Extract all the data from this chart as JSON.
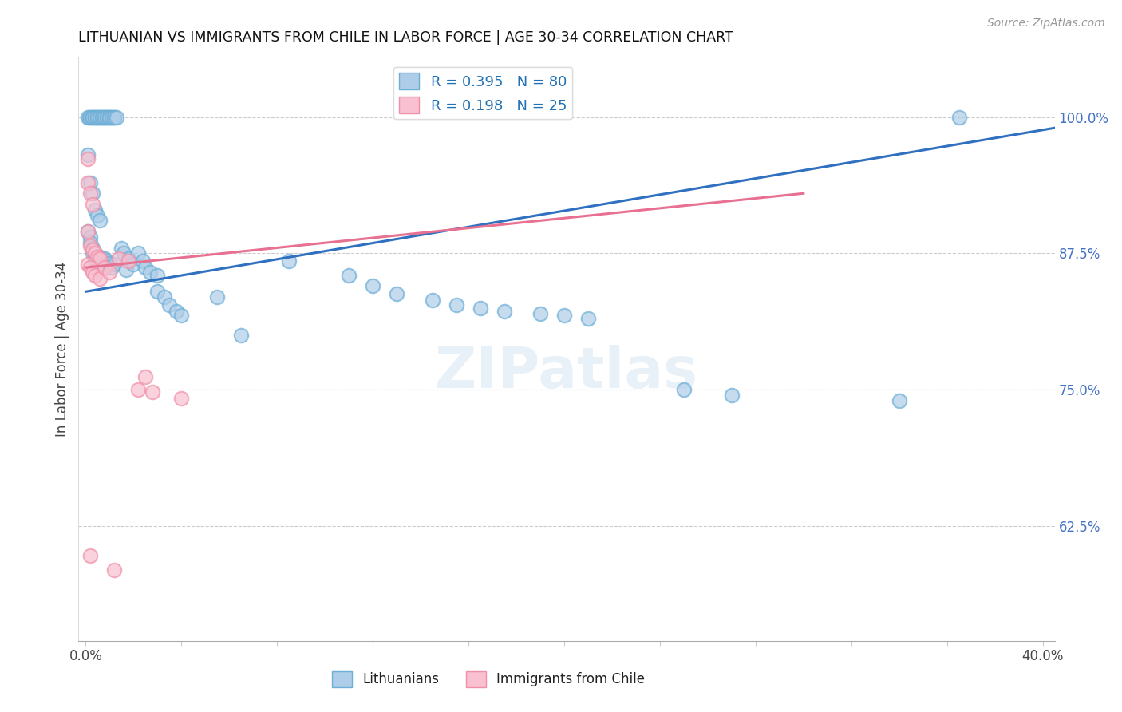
{
  "title": "LITHUANIAN VS IMMIGRANTS FROM CHILE IN LABOR FORCE | AGE 30-34 CORRELATION CHART",
  "source": "Source: ZipAtlas.com",
  "ylabel": "In Labor Force | Age 30-34",
  "xlim": [
    -0.003,
    0.405
  ],
  "ylim": [
    0.52,
    1.055
  ],
  "R_blue": "0.395",
  "N_blue": "80",
  "R_pink": "0.198",
  "N_pink": "25",
  "legend_label_blue": "Lithuanians",
  "legend_label_pink": "Immigrants from Chile",
  "watermark": "ZIPatlas",
  "blue_face": "#aecde8",
  "blue_edge": "#6baed6",
  "pink_face": "#f8c0d0",
  "pink_edge": "#f090a8",
  "blue_line": "#3070c0",
  "pink_line": "#e87090",
  "grid_color": "#cccccc",
  "right_tick_color": "#4472c4",
  "blue_scatter": [
    [
      0.001,
      1.0
    ],
    [
      0.0015,
      1.0
    ],
    [
      0.002,
      1.0
    ],
    [
      0.003,
      1.0
    ],
    [
      0.003,
      1.0
    ],
    [
      0.004,
      1.0
    ],
    [
      0.004,
      1.0
    ],
    [
      0.005,
      1.0
    ],
    [
      0.005,
      1.0
    ],
    [
      0.006,
      1.0
    ],
    [
      0.006,
      1.0
    ],
    [
      0.007,
      1.0
    ],
    [
      0.007,
      1.0
    ],
    [
      0.008,
      1.0
    ],
    [
      0.008,
      1.0
    ],
    [
      0.009,
      1.0
    ],
    [
      0.009,
      1.0
    ],
    [
      0.01,
      1.0
    ],
    [
      0.01,
      1.0
    ],
    [
      0.011,
      1.0
    ],
    [
      0.011,
      1.0
    ],
    [
      0.012,
      1.0
    ],
    [
      0.012,
      1.0
    ],
    [
      0.013,
      1.0
    ],
    [
      0.001,
      0.965
    ],
    [
      0.002,
      0.94
    ],
    [
      0.003,
      0.93
    ],
    [
      0.004,
      0.915
    ],
    [
      0.005,
      0.91
    ],
    [
      0.006,
      0.905
    ],
    [
      0.001,
      0.895
    ],
    [
      0.002,
      0.89
    ],
    [
      0.002,
      0.885
    ],
    [
      0.003,
      0.88
    ],
    [
      0.003,
      0.875
    ],
    [
      0.004,
      0.875
    ],
    [
      0.004,
      0.87
    ],
    [
      0.005,
      0.872
    ],
    [
      0.005,
      0.868
    ],
    [
      0.006,
      0.872
    ],
    [
      0.007,
      0.87
    ],
    [
      0.007,
      0.865
    ],
    [
      0.008,
      0.87
    ],
    [
      0.008,
      0.862
    ],
    [
      0.009,
      0.868
    ],
    [
      0.01,
      0.866
    ],
    [
      0.011,
      0.862
    ],
    [
      0.012,
      0.865
    ],
    [
      0.015,
      0.88
    ],
    [
      0.016,
      0.875
    ],
    [
      0.017,
      0.86
    ],
    [
      0.018,
      0.87
    ],
    [
      0.02,
      0.865
    ],
    [
      0.022,
      0.875
    ],
    [
      0.024,
      0.868
    ],
    [
      0.025,
      0.862
    ],
    [
      0.027,
      0.858
    ],
    [
      0.03,
      0.855
    ],
    [
      0.03,
      0.84
    ],
    [
      0.033,
      0.835
    ],
    [
      0.035,
      0.828
    ],
    [
      0.038,
      0.822
    ],
    [
      0.04,
      0.818
    ],
    [
      0.055,
      0.835
    ],
    [
      0.065,
      0.8
    ],
    [
      0.085,
      0.868
    ],
    [
      0.11,
      0.855
    ],
    [
      0.12,
      0.845
    ],
    [
      0.13,
      0.838
    ],
    [
      0.145,
      0.832
    ],
    [
      0.155,
      0.828
    ],
    [
      0.165,
      0.825
    ],
    [
      0.175,
      0.822
    ],
    [
      0.19,
      0.82
    ],
    [
      0.2,
      0.818
    ],
    [
      0.21,
      0.815
    ],
    [
      0.25,
      0.75
    ],
    [
      0.27,
      0.745
    ],
    [
      0.34,
      0.74
    ],
    [
      0.365,
      1.0
    ]
  ],
  "pink_scatter": [
    [
      0.001,
      0.962
    ],
    [
      0.001,
      0.94
    ],
    [
      0.002,
      0.93
    ],
    [
      0.003,
      0.92
    ],
    [
      0.001,
      0.895
    ],
    [
      0.002,
      0.882
    ],
    [
      0.003,
      0.878
    ],
    [
      0.004,
      0.875
    ],
    [
      0.005,
      0.872
    ],
    [
      0.006,
      0.87
    ],
    [
      0.001,
      0.865
    ],
    [
      0.002,
      0.862
    ],
    [
      0.003,
      0.858
    ],
    [
      0.004,
      0.855
    ],
    [
      0.006,
      0.852
    ],
    [
      0.008,
      0.862
    ],
    [
      0.01,
      0.858
    ],
    [
      0.014,
      0.87
    ],
    [
      0.018,
      0.868
    ],
    [
      0.022,
      0.75
    ],
    [
      0.025,
      0.762
    ],
    [
      0.028,
      0.748
    ],
    [
      0.04,
      0.742
    ],
    [
      0.002,
      0.598
    ],
    [
      0.012,
      0.585
    ]
  ],
  "blue_trend_x": [
    0.0,
    0.405
  ],
  "blue_trend_y": [
    0.84,
    0.99
  ],
  "pink_trend_x": [
    0.0,
    0.3
  ],
  "pink_trend_y": [
    0.862,
    0.93
  ],
  "yticks": [
    1.0,
    0.875,
    0.75,
    0.625
  ],
  "ytick_labels": [
    "100.0%",
    "87.5%",
    "75.0%",
    "62.5%"
  ],
  "xtick_positions": [
    0.0,
    0.04,
    0.08,
    0.12,
    0.16,
    0.2,
    0.24,
    0.28,
    0.32,
    0.36,
    0.4
  ],
  "xtick_labels": [
    "0.0%",
    "",
    "",
    "",
    "",
    "",
    "",
    "",
    "",
    "",
    "40.0%"
  ]
}
